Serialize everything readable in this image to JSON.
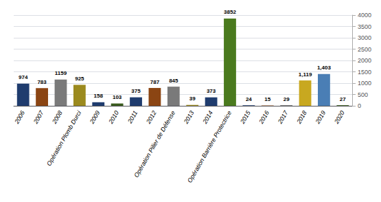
{
  "chart_data": {
    "type": "bar",
    "categories": [
      "2006",
      "2007",
      "2008",
      "Opération Plomb Durci",
      "2009",
      "2010",
      "2011",
      "2012",
      "Opération Pilier de Défense",
      "2013",
      "2014",
      "Opération Barrière Protectrice",
      "2015",
      "2016",
      "2017",
      "2018",
      "2019",
      "2020"
    ],
    "values": [
      974,
      783,
      1159,
      925,
      158,
      103,
      375,
      787,
      845,
      39,
      373,
      3852,
      24,
      15,
      29,
      1119,
      1403,
      27
    ],
    "value_labels": [
      "974",
      "783",
      "1159",
      "925",
      "158",
      "103",
      "375",
      "787",
      "845",
      "39",
      "373",
      "3852",
      "24",
      "15",
      "29",
      "1,119",
      "1,403",
      "27"
    ],
    "colors": [
      "#1f3c6e",
      "#8b4513",
      "#7a7a7a",
      "#9b8a1e",
      "#1f3c6e",
      "#3a5c1e",
      "#1f3c6e",
      "#8b4513",
      "#7a7a7a",
      "#9b8a1e",
      "#1f3c6e",
      "#4a7a1e",
      "#1f3c6e",
      "#8b4513",
      "#7a7a7a",
      "#c8a820",
      "#4a7eb5",
      "#3a5c1e"
    ],
    "ylim": [
      0,
      4000
    ],
    "yticks": [
      0,
      500,
      1000,
      1500,
      2000,
      2500,
      3000,
      3500,
      4000
    ],
    "grid": true,
    "data_labels": true
  }
}
